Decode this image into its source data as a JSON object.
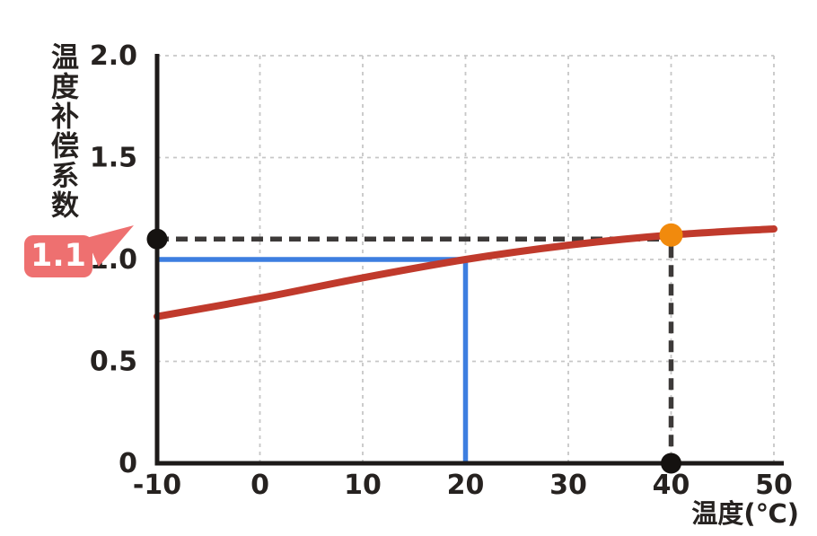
{
  "chart_data": {
    "type": "line",
    "title": "",
    "xlabel": "温度(℃)",
    "ylabel": "温度补偿系数",
    "xlim": [
      -10,
      50
    ],
    "ylim": [
      0,
      2
    ],
    "x_ticks": [
      -10,
      0,
      10,
      20,
      30,
      40,
      50
    ],
    "x_tick_labels": [
      "-10",
      "0",
      "10",
      "20",
      "30",
      "40",
      "50"
    ],
    "y_ticks": [
      0,
      0.5,
      1,
      1.5,
      2
    ],
    "y_tick_labels": [
      "0",
      "0.5",
      "1.0",
      "1.5",
      "2.0"
    ],
    "grid": "dashed",
    "legend": "none",
    "series": [
      {
        "name": "temperature-compensation-curve",
        "color": "#c03a2c",
        "x": [
          -10,
          0,
          10,
          20,
          30,
          40,
          50
        ],
        "y": [
          0.72,
          0.81,
          0.91,
          1.0,
          1.07,
          1.12,
          1.15
        ]
      }
    ],
    "annotations": {
      "blue_guide": {
        "color": "#3d7ee0",
        "h_line": {
          "y": 1.0,
          "x_from": -10,
          "x_to": 20
        },
        "v_line": {
          "x": 20,
          "y_from": 0,
          "y_to": 1.0
        }
      },
      "dashed_guide": {
        "color": "#3d3a39",
        "h_line": {
          "y": 1.1,
          "x_from": -10,
          "x_to": 40
        },
        "v_line": {
          "x": 40,
          "y_from": 0,
          "y_to": 1.1
        }
      },
      "markers": [
        {
          "name": "y-axis-intercept-dot",
          "x": -10,
          "y": 1.1,
          "color": "#151210",
          "r": 11.5
        },
        {
          "name": "x-axis-intercept-dot",
          "x": 40,
          "y": 0,
          "color": "#151210",
          "r": 11.5
        },
        {
          "name": "curve-point-dot",
          "x": 40,
          "y": 1.12,
          "color": "#f18a0d",
          "r": 13
        }
      ],
      "callout": {
        "label": "1.1",
        "bg_color": "#ee7070",
        "text_color": "#ffffff"
      }
    },
    "colors": {
      "axis": "#1d1a19",
      "grid": "#c7c7c7",
      "tick_text": "#262220",
      "background": "#ffffff"
    }
  }
}
